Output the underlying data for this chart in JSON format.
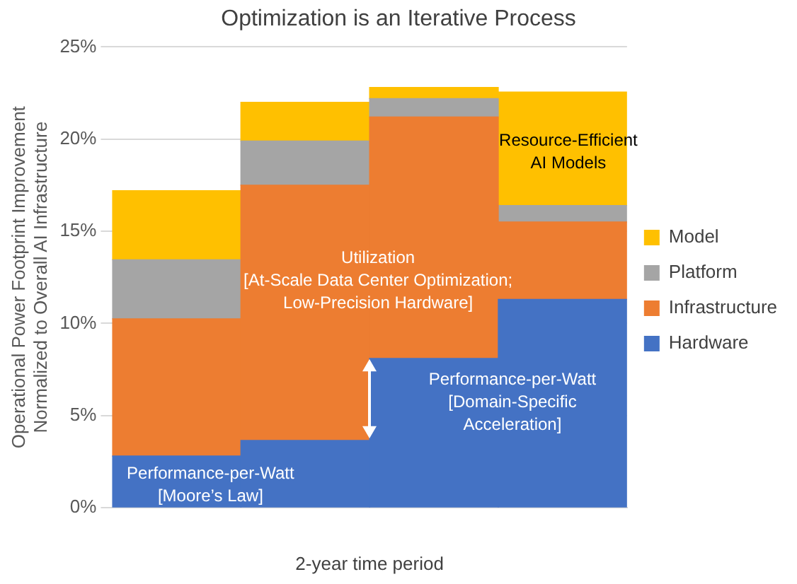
{
  "chart_data": {
    "type": "bar",
    "title": "Optimization is an Iterative Process",
    "xlabel": "2-year time period",
    "ylabel": "Operational Power Footprint Improvement\nNormalized to Overall AI Infrastructure",
    "categories": [
      null,
      null,
      null,
      null
    ],
    "stacked": true,
    "series": [
      {
        "name": "Hardware",
        "color": "#4472c4",
        "values": [
          2.8,
          3.65,
          8.1,
          11.3
        ]
      },
      {
        "name": "Infrastructure",
        "color": "#ed7d31",
        "values": [
          7.45,
          13.85,
          13.1,
          4.2
        ]
      },
      {
        "name": "Platform",
        "color": "#a5a5a5",
        "values": [
          3.2,
          2.4,
          1.0,
          0.9
        ]
      },
      {
        "name": "Model",
        "color": "#ffc000",
        "values": [
          3.75,
          2.1,
          0.6,
          6.15
        ]
      }
    ],
    "ylim": [
      0,
      25
    ],
    "yticks": [
      {
        "value": 0,
        "label": "0%"
      },
      {
        "value": 5,
        "label": "5%"
      },
      {
        "value": 10,
        "label": "10%"
      },
      {
        "value": 15,
        "label": "15%"
      },
      {
        "value": 20,
        "label": "20%"
      },
      {
        "value": 25,
        "label": "25%"
      }
    ],
    "grid": "y",
    "legend": "right",
    "annotations": [
      "Performance-per-Watt\n[Moore’s Law]",
      "Utilization\n[At-Scale Data Center Optimization;\nLow-Precision Hardware]",
      "Performance-per-Watt\n[Domain-Specific\nAcceleration]",
      "Resource-Efficient\nAI Models"
    ]
  }
}
